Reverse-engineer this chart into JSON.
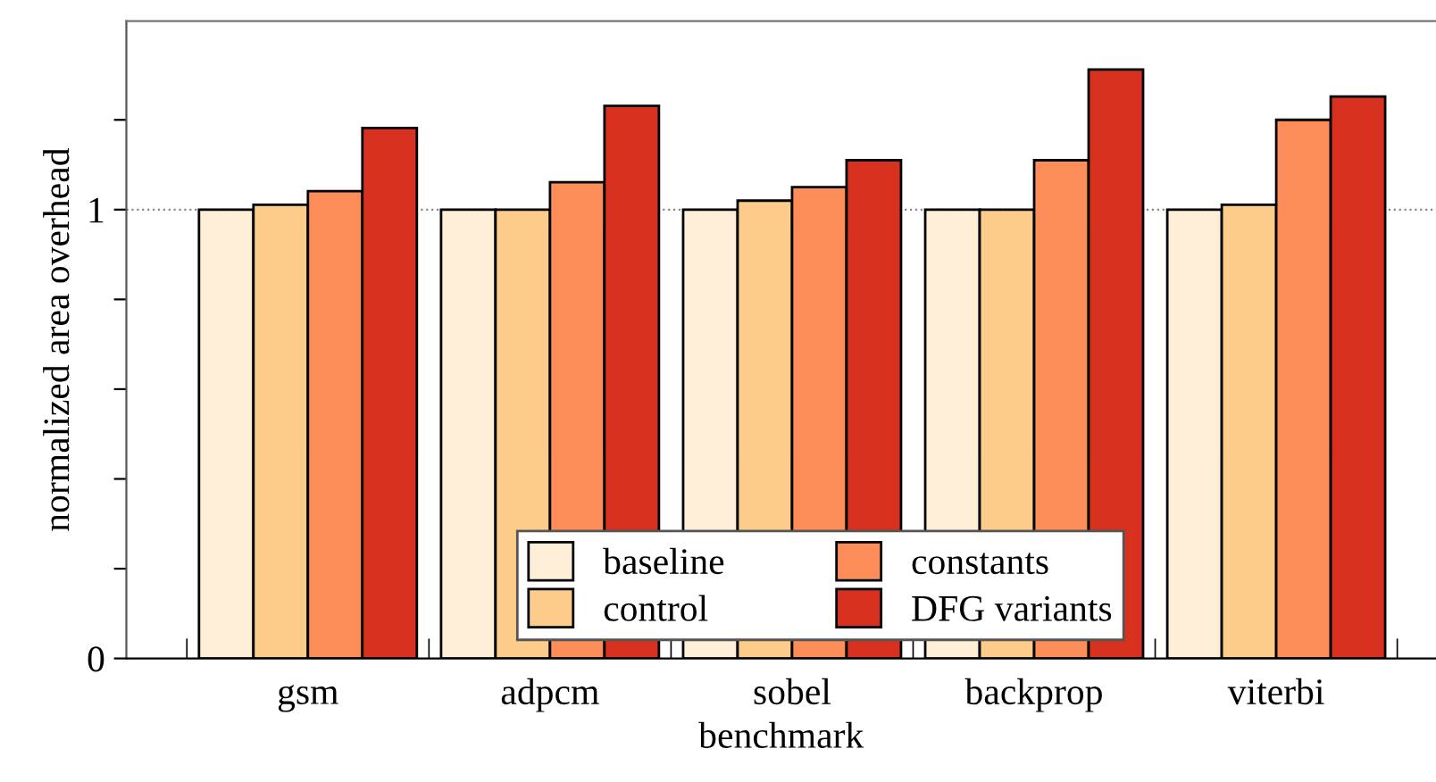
{
  "chart_data": {
    "type": "bar",
    "xlabel": "benchmark",
    "ylabel": "normalized area overhead",
    "categories": [
      "gsm",
      "adpcm",
      "sobel",
      "backprop",
      "viterbi"
    ],
    "series": [
      {
        "name": "baseline",
        "color": "#feeed8",
        "values": [
          1,
          1,
          1,
          1,
          1
        ]
      },
      {
        "name": "control",
        "color": "#fdcc8a",
        "values": [
          1.011,
          1,
          1.02,
          1,
          1.011
        ]
      },
      {
        "name": "constants",
        "color": "#fc8d59",
        "values": [
          1.041,
          1.061,
          1.05,
          1.11,
          1.2
        ]
      },
      {
        "name": "DFG variants",
        "color": "#d7301f",
        "values": [
          1.182,
          1.231,
          1.11,
          1.312,
          1.252
        ]
      }
    ],
    "ylim": [
      0,
      1.42
    ],
    "yticks": [
      0,
      {
        "value": 0.2,
        "label": null
      },
      {
        "value": 0.4,
        "label": null
      },
      {
        "value": 0.6,
        "label": null
      },
      {
        "value": 0.8,
        "label": null
      },
      1,
      {
        "value": 1.2,
        "label": null
      }
    ],
    "ref_lines": [
      {
        "axis": "y",
        "value": 1,
        "color": "#888888",
        "line_style": "dotted"
      }
    ],
    "legend": "bottom",
    "grid": false
  }
}
